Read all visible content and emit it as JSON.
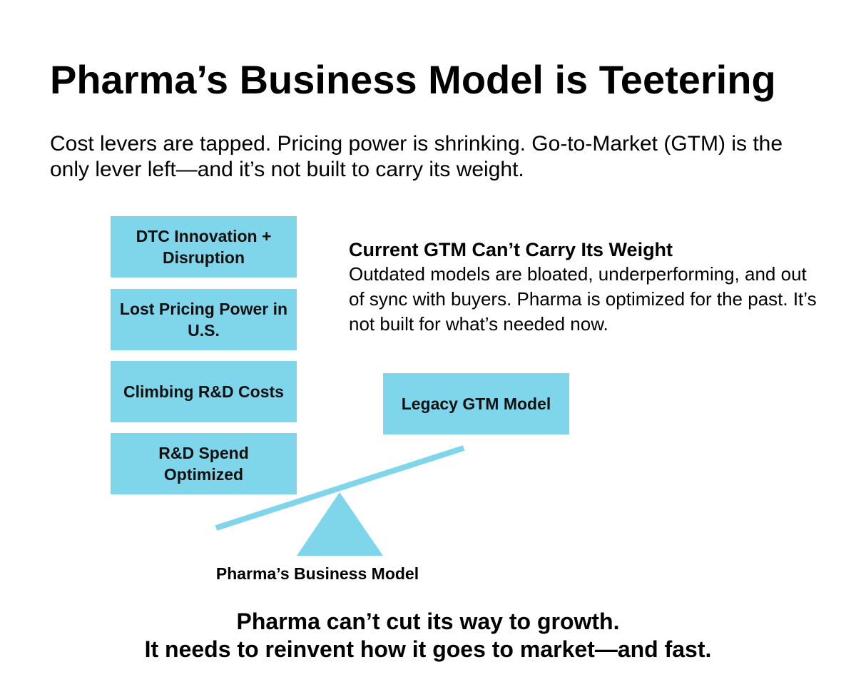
{
  "title": "Pharma’s Business Model is Teetering",
  "subtitle": "Cost levers are tapped. Pricing power is shrinking. Go-to-Market (GTM) is the only lever left—and it’s not built to carry its weight.",
  "pressures": [
    {
      "label": "DTC Innovation + Disruption"
    },
    {
      "label": "Lost Pricing Power in U.S."
    },
    {
      "label": "Climbing R&D Costs"
    },
    {
      "label": "R&D Spend Optimized"
    }
  ],
  "legacy_box": {
    "label": "Legacy GTM Model"
  },
  "callout": {
    "heading": "Current GTM Can’t Carry Its Weight",
    "body": "Outdated models are bloated, underperforming, and out of sync with buyers. Pharma is optimized for the past. It’s not built for what’s needed now."
  },
  "fulcrum_label": "Pharma’s Business Model",
  "conclusion": {
    "line1": "Pharma can’t cut its way to growth.",
    "line2": "It needs to reinvent how it goes to market—and fast."
  },
  "colors": {
    "box_fill": "#7fd6eb",
    "beam": "#7fd6eb",
    "text": "#000000"
  }
}
